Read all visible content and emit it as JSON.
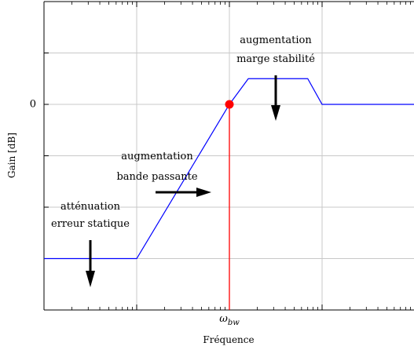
{
  "chart_data": {
    "type": "line",
    "title": "",
    "xlabel": "Fréquence",
    "ylabel": "Gain [dB]",
    "x_scale": "log",
    "xlim": [
      0.01,
      100
    ],
    "ylim": [
      -40,
      20
    ],
    "x_tick_labels": [
      {
        "x": 1,
        "label": "ω_bw"
      }
    ],
    "y_tick_labels": [
      {
        "y": 0,
        "label": "0"
      }
    ],
    "grid": true,
    "series": [
      {
        "color": "#0000ff",
        "points": [
          {
            "x": 0.01,
            "y": -30
          },
          {
            "x": 0.1,
            "y": -30
          },
          {
            "x": 1,
            "y": 0
          },
          {
            "x": 1.6,
            "y": 5
          },
          {
            "x": 7,
            "y": 5
          },
          {
            "x": 10,
            "y": 0
          },
          {
            "x": 100,
            "y": 0
          }
        ]
      }
    ],
    "markers": [
      {
        "x": 1,
        "y": 0,
        "color": "#ff0000"
      }
    ],
    "reference_lines": [
      {
        "orientation": "vertical",
        "x": 1,
        "color": "#ff0000"
      }
    ],
    "annotations": [
      {
        "lines": [
          "augmentation",
          "marge stabilité"
        ],
        "arrow": "down"
      },
      {
        "lines": [
          "augmentation",
          "bande passante"
        ],
        "arrow": "right"
      },
      {
        "lines": [
          "atténuation",
          "erreur statique"
        ],
        "arrow": "down"
      }
    ]
  }
}
